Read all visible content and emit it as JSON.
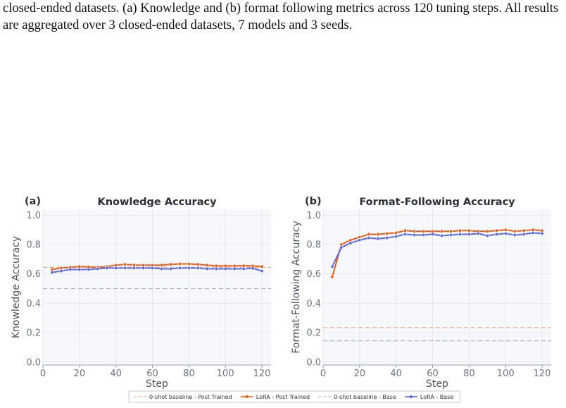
{
  "caption": "closed-ended datasets. (a) Knowledge and (b) format following metrics across 120 tuning steps. All results are aggregated over 3 closed-ended datasets, 7 models and 3 seeds.",
  "chart_data": [
    {
      "type": "line",
      "panel": "(a)",
      "title": "Knowledge Accuracy",
      "x_label": "Step",
      "y_label": "Knowledge Accuracy",
      "x": [
        5,
        10,
        15,
        20,
        25,
        30,
        35,
        40,
        45,
        50,
        55,
        60,
        65,
        70,
        75,
        80,
        85,
        90,
        95,
        100,
        105,
        110,
        115,
        120
      ],
      "xlim": [
        0,
        125
      ],
      "xticks": [
        0,
        20,
        40,
        60,
        80,
        100,
        120
      ],
      "ylim": [
        -0.02,
        1.04
      ],
      "yticks": [
        {
          "value": 0,
          "label": "0.0"
        },
        0.2,
        0.4,
        0.6,
        0.8,
        {
          "value": 1,
          "label": "1.0"
        }
      ],
      "grid": true,
      "series": [
        {
          "name": "0-shot baseline - Post Trained",
          "color": "#f5a37a",
          "value": 0.645
        },
        {
          "name": "LoRA - Post Trained",
          "color": "#ee5a12",
          "values": [
            0.63,
            0.64,
            0.645,
            0.65,
            0.648,
            0.645,
            0.65,
            0.66,
            0.665,
            0.66,
            0.66,
            0.66,
            0.66,
            0.665,
            0.668,
            0.668,
            0.665,
            0.66,
            0.655,
            0.655,
            0.655,
            0.656,
            0.655,
            0.65
          ]
        },
        {
          "name": "0-shot baseline - Base",
          "color": "#a9b3f0",
          "value": 0.5
        },
        {
          "name": "LoRA - Base",
          "color": "#5567e8",
          "values": [
            0.61,
            0.62,
            0.63,
            0.63,
            0.63,
            0.635,
            0.64,
            0.64,
            0.64,
            0.64,
            0.64,
            0.64,
            0.635,
            0.635,
            0.64,
            0.64,
            0.64,
            0.635,
            0.635,
            0.635,
            0.635,
            0.635,
            0.638,
            0.62
          ]
        }
      ]
    },
    {
      "type": "line",
      "panel": "(b)",
      "title": "Format-Following Accuracy",
      "x_label": "Step",
      "y_label": "Format-Following Accuracy",
      "x": [
        5,
        10,
        15,
        20,
        25,
        30,
        35,
        40,
        45,
        50,
        55,
        60,
        65,
        70,
        75,
        80,
        85,
        90,
        95,
        100,
        105,
        110,
        115,
        120
      ],
      "xlim": [
        0,
        125
      ],
      "xticks": [
        0,
        20,
        40,
        60,
        80,
        100,
        120
      ],
      "ylim": [
        -0.02,
        1.04
      ],
      "yticks": [
        {
          "value": 0,
          "label": "0.0"
        },
        0.2,
        0.4,
        0.6,
        0.8,
        {
          "value": 1,
          "label": "1.0"
        }
      ],
      "grid": true,
      "series": [
        {
          "color": "#f5a37a",
          "value": 0.235
        },
        {
          "color": "#ee5a12",
          "values": [
            0.58,
            0.8,
            0.83,
            0.85,
            0.87,
            0.87,
            0.875,
            0.88,
            0.895,
            0.89,
            0.89,
            0.89,
            0.89,
            0.89,
            0.895,
            0.895,
            0.89,
            0.89,
            0.895,
            0.9,
            0.89,
            0.895,
            0.9,
            0.895
          ]
        },
        {
          "color": "#a9b3f0",
          "value": 0.145
        },
        {
          "color": "#5567e8",
          "values": [
            0.65,
            0.78,
            0.81,
            0.83,
            0.845,
            0.84,
            0.845,
            0.855,
            0.87,
            0.865,
            0.865,
            0.87,
            0.86,
            0.865,
            0.87,
            0.87,
            0.875,
            0.86,
            0.87,
            0.875,
            0.865,
            0.87,
            0.88,
            0.875
          ]
        }
      ]
    }
  ]
}
